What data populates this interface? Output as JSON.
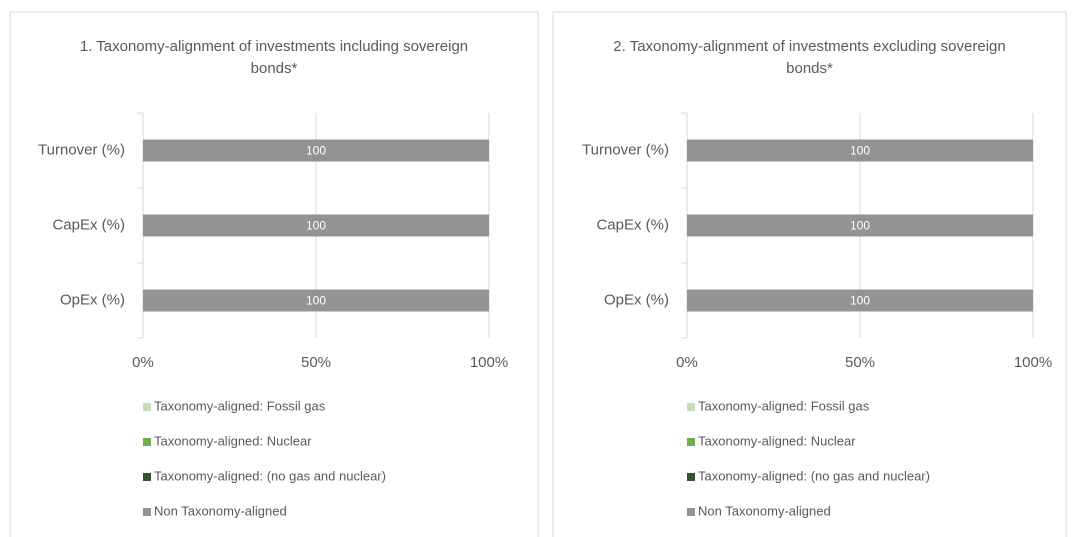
{
  "chart_data": [
    {
      "type": "bar",
      "orientation": "horizontal",
      "stacked": true,
      "title": "1. Taxonomy-alignment of investments including sovereign bonds*",
      "categories": [
        "Turnover (%)",
        "CapEx (%)",
        "OpEx (%)"
      ],
      "series": [
        {
          "name": "Taxonomy-aligned: Fossil gas",
          "color": "#c6e0b4",
          "values": [
            0,
            0,
            0
          ]
        },
        {
          "name": "Taxonomy-aligned: Nuclear",
          "color": "#70ad47",
          "values": [
            0,
            0,
            0
          ]
        },
        {
          "name": "Taxonomy-aligned: (no gas and nuclear)",
          "color": "#375623",
          "values": [
            0,
            0,
            0
          ]
        },
        {
          "name": "Non Taxonomy-aligned",
          "color": "#939393",
          "values": [
            100,
            100,
            100
          ]
        }
      ],
      "xlim": [
        0,
        100
      ],
      "xticks": [
        {
          "value": 0,
          "label": "0%"
        },
        {
          "value": 50,
          "label": "50%"
        },
        {
          "value": 100,
          "label": "100%"
        }
      ],
      "grid": true,
      "legend": "bottom"
    },
    {
      "type": "bar",
      "orientation": "horizontal",
      "stacked": true,
      "title": "2. Taxonomy-alignment of investments excluding sovereign bonds*",
      "categories": [
        "Turnover (%)",
        "CapEx (%)",
        "OpEx (%)"
      ],
      "series": [
        {
          "name": "Taxonomy-aligned: Fossil gas",
          "color": "#c6e0b4",
          "values": [
            0,
            0,
            0
          ]
        },
        {
          "name": "Taxonomy-aligned: Nuclear",
          "color": "#70ad47",
          "values": [
            0,
            0,
            0
          ]
        },
        {
          "name": "Taxonomy-aligned: (no gas and nuclear)",
          "color": "#375623",
          "values": [
            0,
            0,
            0
          ]
        },
        {
          "name": "Non Taxonomy-aligned",
          "color": "#939393",
          "values": [
            100,
            100,
            100
          ]
        }
      ],
      "xlim": [
        0,
        100
      ],
      "xticks": [
        {
          "value": 0,
          "label": "0%"
        },
        {
          "value": 50,
          "label": "50%"
        },
        {
          "value": 100,
          "label": "100%"
        }
      ],
      "grid": true,
      "legend": "bottom"
    }
  ]
}
